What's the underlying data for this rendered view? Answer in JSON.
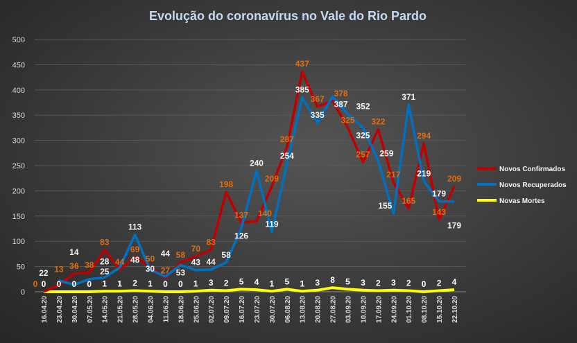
{
  "chart_data": {
    "type": "line",
    "title": "Evolução  do coronavírus  no Vale do Rio Pardo",
    "xlabel": "",
    "ylabel": "",
    "ylim": [
      0,
      500
    ],
    "yticks": [
      0,
      50,
      100,
      150,
      200,
      250,
      300,
      350,
      400,
      450,
      500
    ],
    "grid": true,
    "legend_position": "right",
    "categories": [
      "16.04.20",
      "23.04.20",
      "30.04.20",
      "07.05.20",
      "14.05.20",
      "21.05.20",
      "28.05.20",
      "04.06.20",
      "11.06.20",
      "18.06.20",
      "25.06.20",
      "02.07.20",
      "09.07.20",
      "16.07.20",
      "23.07.20",
      "30.07.20",
      "06.08.20",
      "13.08.20",
      "20.08.20",
      "27.08.20",
      "03.09.20",
      "10.09.20",
      "17.09.20",
      "24.09.20",
      "01.10.20",
      "08.10.20",
      "15.10.20",
      "22.10.20"
    ],
    "series": [
      {
        "name": "Novos Confirmados",
        "color": "#c00000",
        "label_color": "#e46c0a",
        "values": [
          0,
          13,
          36,
          38,
          83,
          44,
          69,
          50,
          27,
          58,
          70,
          83,
          198,
          137,
          140,
          209,
          287,
          437,
          367,
          378,
          325,
          257,
          322,
          217,
          165,
          294,
          143,
          209
        ]
      },
      {
        "name": "Novos Recuperados",
        "color": "#0070c0",
        "label_color": "#f2f2f2",
        "values": [
          null,
          22,
          14,
          25,
          28,
          48,
          113,
          44,
          30,
          53,
          43,
          44,
          58,
          126,
          240,
          119,
          254,
          385,
          335,
          387,
          352,
          325,
          259,
          155,
          371,
          219,
          179,
          179
        ]
      },
      {
        "name": "Novas Mortes",
        "color": "#ffff00",
        "label_color": "#ffffff",
        "values": [
          0,
          0,
          0,
          0,
          1,
          1,
          2,
          1,
          0,
          0,
          1,
          3,
          2,
          5,
          4,
          1,
          5,
          1,
          3,
          8,
          5,
          3,
          2,
          3,
          2,
          0,
          2,
          4
        ]
      }
    ]
  }
}
